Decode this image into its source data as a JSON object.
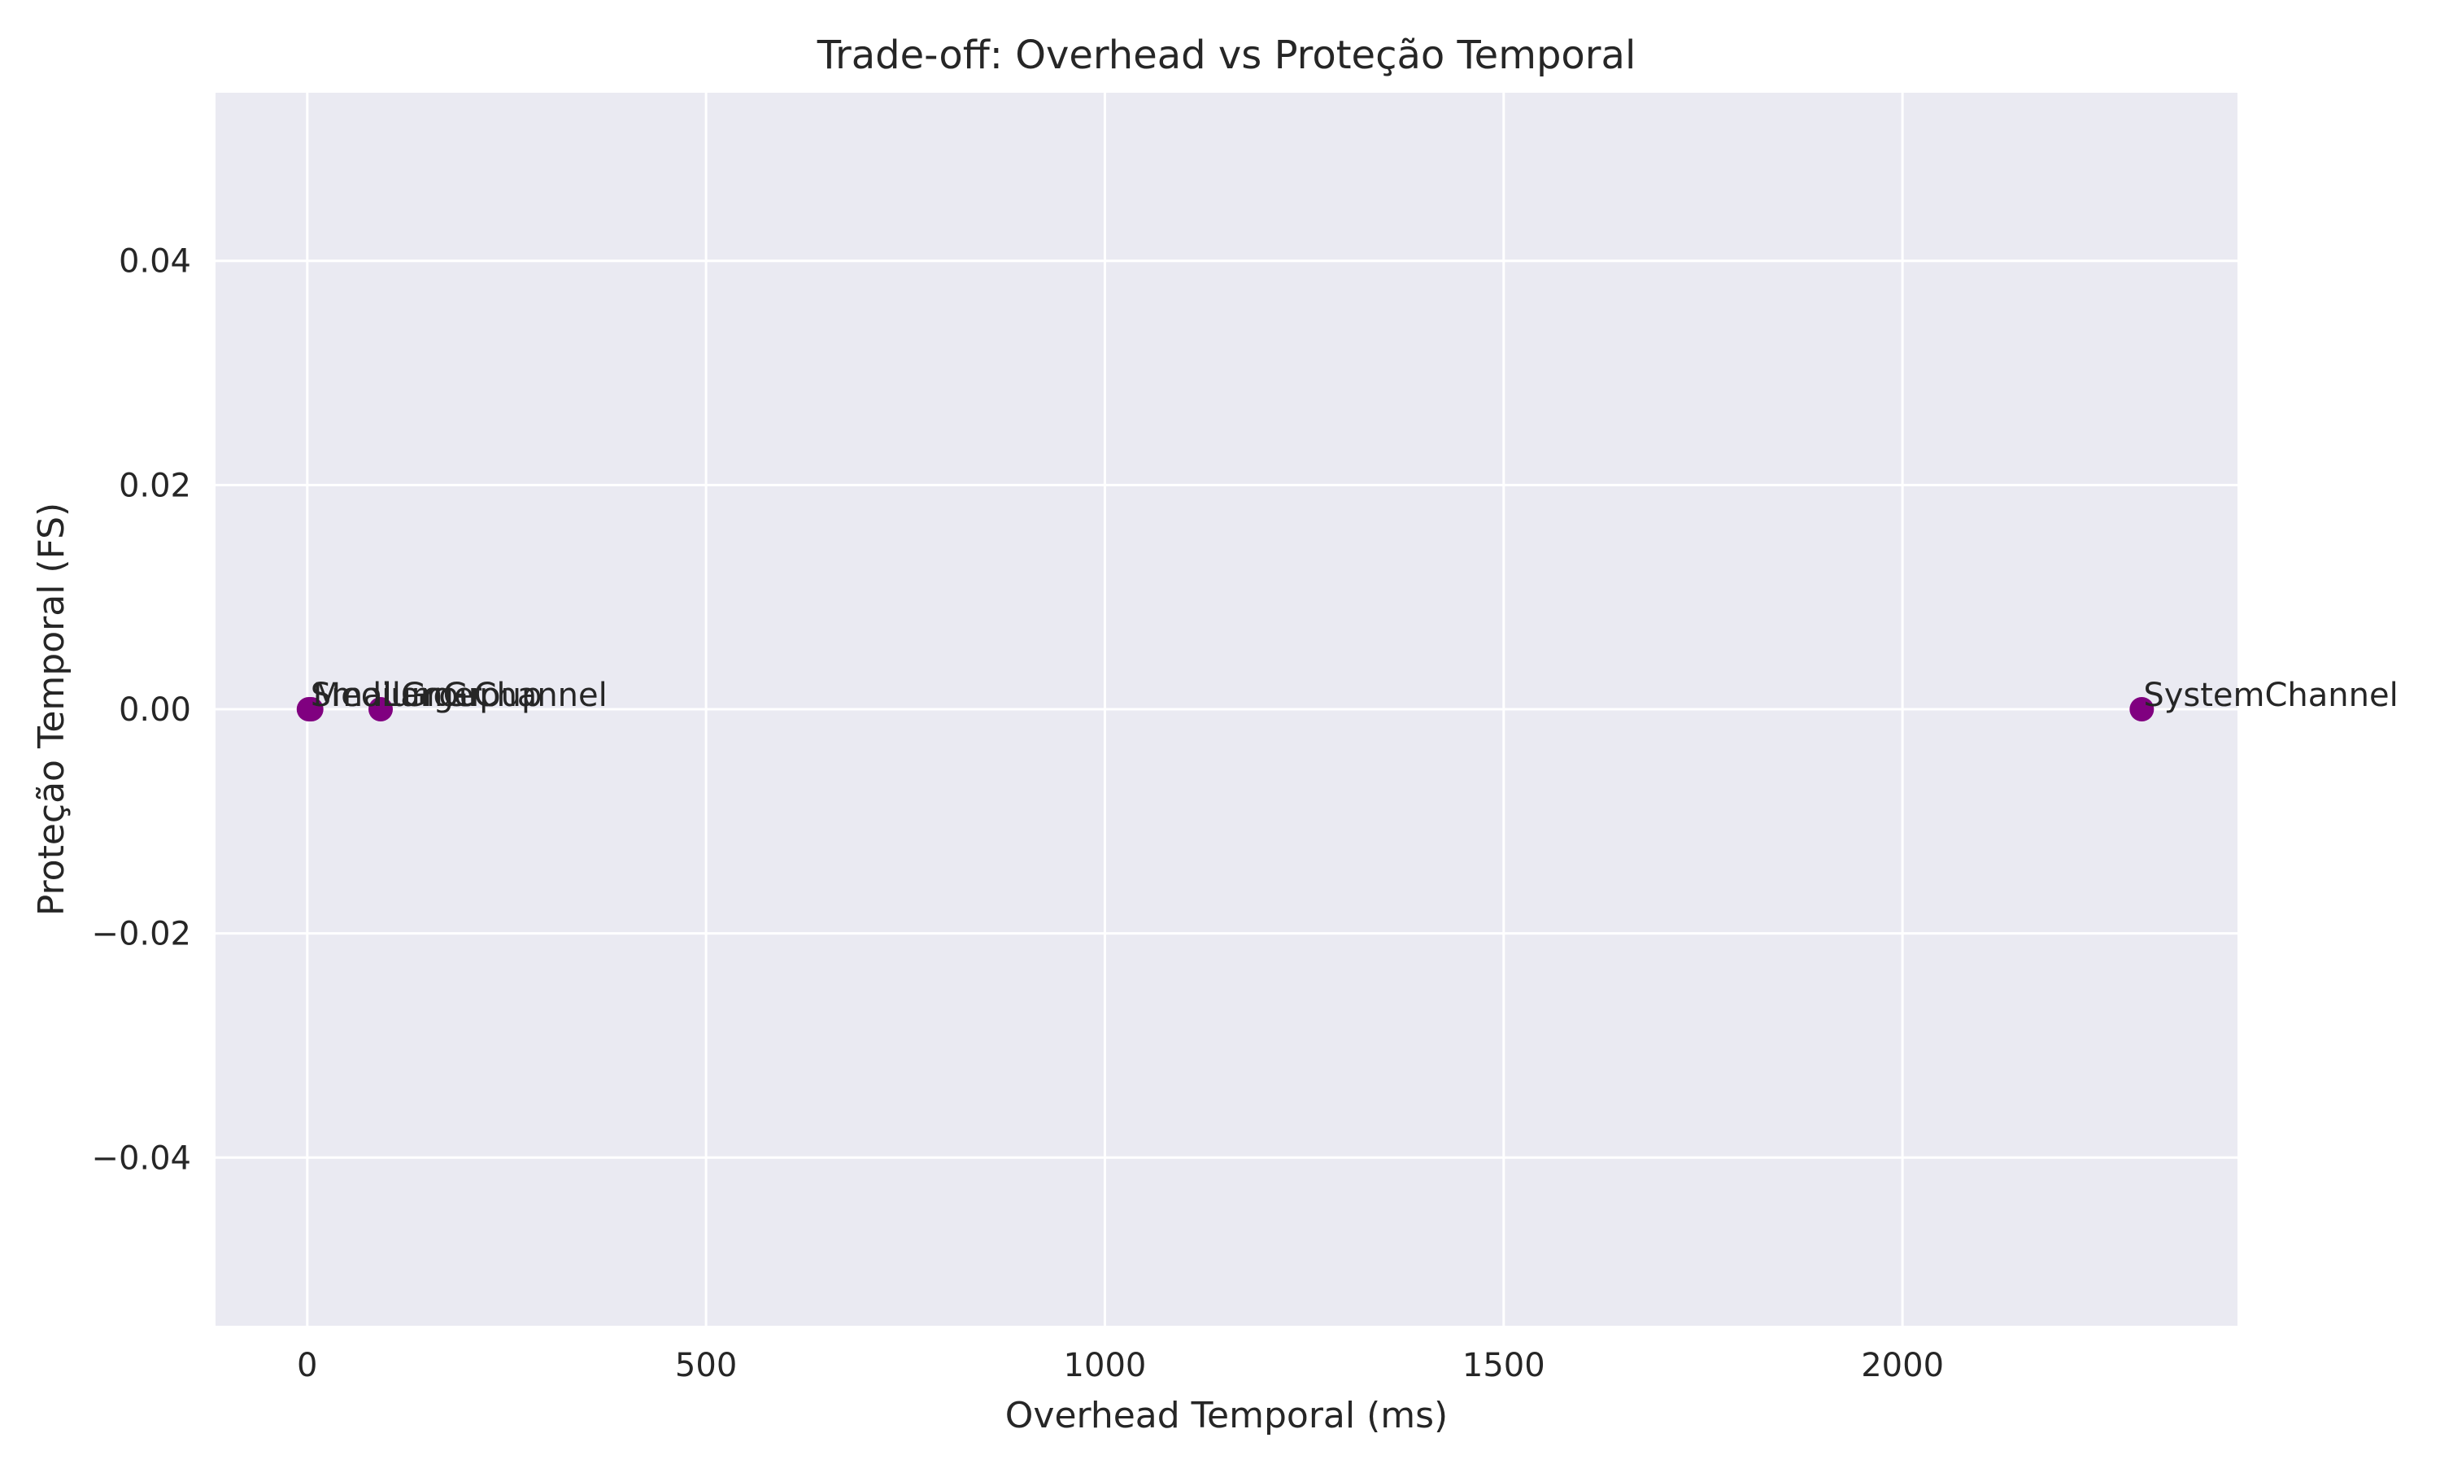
{
  "chart_data": {
    "type": "scatter",
    "title": "Trade-off: Overhead vs Proteção Temporal",
    "xlabel": "Overhead Temporal (ms)",
    "ylabel": "Proteção Temporal (FS)",
    "xlim": [
      -115,
      2420
    ],
    "ylim": [
      -0.055,
      0.055
    ],
    "xticks": [
      0,
      500,
      1000,
      1500,
      2000
    ],
    "yticks": [
      -0.04,
      -0.02,
      0.0,
      0.02,
      0.04
    ],
    "xtick_labels": [
      "0",
      "500",
      "1000",
      "1500",
      "2000"
    ],
    "ytick_labels": [
      "−0.04",
      "−0.02",
      "0.00",
      "0.02",
      "0.04"
    ],
    "grid": true,
    "background_color": "#eaeaf2",
    "grid_color": "#ffffff",
    "marker_color": "#800080",
    "points": [
      {
        "label": "SmallGroup",
        "x": 2,
        "y": 0.0
      },
      {
        "label": "MediumGroup",
        "x": 5,
        "y": 0.0
      },
      {
        "label": "LargeChannel",
        "x": 92,
        "y": 0.0
      },
      {
        "label": "SystemChannel",
        "x": 2300,
        "y": 0.0
      }
    ]
  }
}
